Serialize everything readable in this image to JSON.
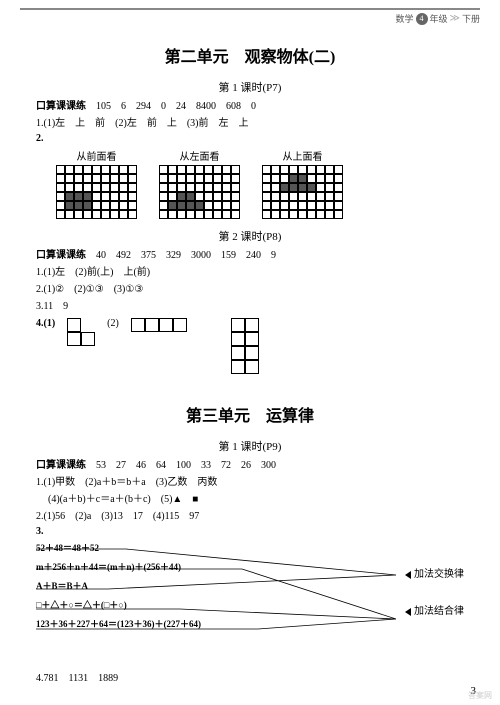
{
  "header": {
    "subject": "数学",
    "grade": "4",
    "gradeLabel": "年级",
    "book": "下册"
  },
  "unit2": {
    "title": "第二单元　观察物体(二)",
    "lesson1": {
      "title": "第 1 课时(P7)",
      "kousuanLabel": "口算课课练",
      "kousuan": "105　6　294　0　24　8400　608　0",
      "q1": "1.(1)左　上　前　(2)左　前　上　(3)前　左　上",
      "q2label": "2.",
      "views": [
        "从前面看",
        "从左面看",
        "从上面看"
      ],
      "gridCols": 9,
      "gridRows": 6,
      "shape1": [
        [
          3,
          1
        ],
        [
          3,
          2
        ],
        [
          3,
          3
        ],
        [
          4,
          1
        ],
        [
          4,
          2
        ],
        [
          4,
          3
        ]
      ],
      "shape2": [
        [
          3,
          2
        ],
        [
          3,
          3
        ],
        [
          4,
          1
        ],
        [
          4,
          2
        ],
        [
          4,
          3
        ],
        [
          4,
          4
        ]
      ],
      "shape3": [
        [
          1,
          3
        ],
        [
          1,
          4
        ],
        [
          2,
          2
        ],
        [
          2,
          3
        ],
        [
          2,
          4
        ],
        [
          2,
          5
        ]
      ]
    },
    "lesson2": {
      "title": "第 2 课时(P8)",
      "kousuanLabel": "口算课课练",
      "kousuan": "40　492　375　329　3000　159　240　9",
      "q1": "1.(1)左　(2)前(上)　上(前)",
      "q2": "2.(1)②　(2)①③　(3)①③",
      "q3": "3.11　9",
      "q4label": "4.(1)",
      "q4label2": "(2)"
    }
  },
  "unit3": {
    "title": "第三单元　运算律",
    "lesson1": {
      "title": "第 1 课时(P9)",
      "kousuanLabel": "口算课课练",
      "kousuan": "53　27　46　64　100　33　72　26　300",
      "q1a": "1.(1)甲数　(2)a＋b＝b＋a　(3)乙数　丙数",
      "q1b": "(4)(a＋b)＋c＝a＋(b＋c)　(5)▲　■",
      "q2": "2.(1)56　(2)a　(3)13　17　(4)115　97",
      "q3label": "3.",
      "leftItems": [
        "52＋48＝48＋52",
        "m＋256＋n＋44＝(m＋n)＋(256＋44)",
        "A＋B＝B＋A",
        "□＋△＋○＝△＋(□＋○)",
        "123＋36＋227＋64＝(123＋36)＋(227＋64)"
      ],
      "rightItems": [
        "加法交换律",
        "加法结合律"
      ],
      "leftYs": [
        8,
        28,
        48,
        68,
        88
      ],
      "rightYs": [
        34,
        78
      ],
      "leftEndX": [
        90,
        206,
        72,
        144,
        222
      ],
      "matchMap": [
        0,
        1,
        0,
        1,
        1
      ],
      "q4": "4.781　1131　1889"
    }
  },
  "pageNum": "3"
}
